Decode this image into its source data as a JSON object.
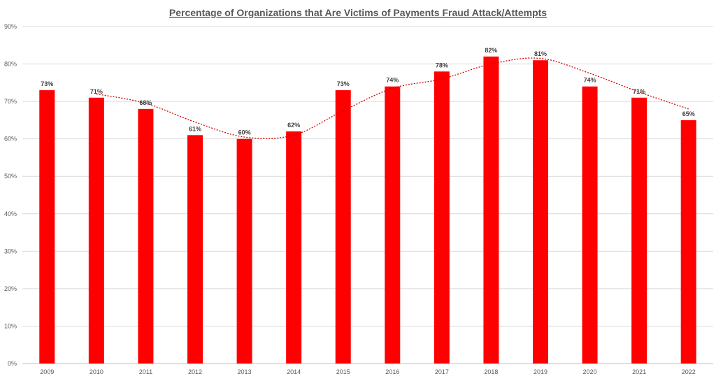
{
  "chart_data": {
    "type": "bar",
    "title": "Percentage of Organizations that Are Victims of Payments Fraud Attack/Attempts",
    "categories": [
      "2009",
      "2010",
      "2011",
      "2012",
      "2013",
      "2014",
      "2015",
      "2016",
      "2017",
      "2018",
      "2019",
      "2020",
      "2021",
      "2022"
    ],
    "values": [
      73,
      71,
      68,
      61,
      60,
      62,
      73,
      74,
      78,
      82,
      81,
      74,
      71,
      65
    ],
    "data_labels": [
      "73%",
      "71%",
      "68%",
      "61%",
      "60%",
      "62%",
      "73%",
      "74%",
      "78%",
      "82%",
      "81%",
      "74%",
      "71%",
      "65%"
    ],
    "ylim": [
      0,
      90
    ],
    "yticks": [
      0,
      10,
      20,
      30,
      40,
      50,
      60,
      70,
      80,
      90
    ],
    "ytick_labels": [
      "0%",
      "10%",
      "20%",
      "30%",
      "40%",
      "50%",
      "60%",
      "70%",
      "80%",
      "90%"
    ],
    "trendline": {
      "type": "moving-average",
      "period": 2,
      "style": "dotted"
    },
    "grid": true,
    "legend": "none",
    "colors": {
      "bar": "#ff0000",
      "trendline": "#d60000",
      "grid": "#d9d9d9"
    }
  }
}
